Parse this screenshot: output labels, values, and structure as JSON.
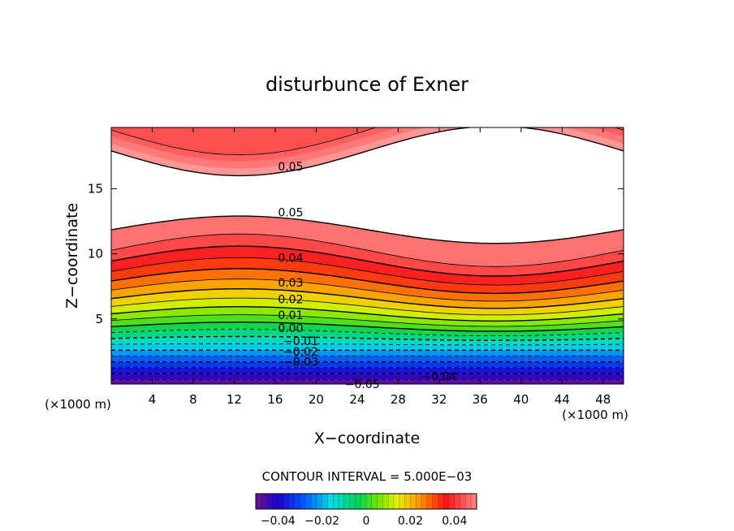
{
  "chart_data": {
    "type": "contour",
    "title": "disturbunce of Exner",
    "xlabel": "X−coordinate",
    "ylabel": "Z−coordinate",
    "x_unit": "(×1000 m)",
    "y_unit": "(×1000 m)",
    "xlim": [
      0,
      50
    ],
    "ylim": [
      0,
      19.7
    ],
    "x_ticks": [
      4,
      8,
      12,
      16,
      20,
      24,
      28,
      32,
      36,
      40,
      44,
      48
    ],
    "y_ticks": [
      5,
      10,
      15
    ],
    "contour_interval_text": "CONTOUR INTERVAL = 5.000E−03",
    "contour_interval": 0.005,
    "color_range": [
      -0.05,
      0.05
    ],
    "colorbar_ticks": [
      "−0.04",
      "−0.02",
      "0",
      "0.02",
      "0.04"
    ],
    "contour_labels": [
      {
        "text": "0.05",
        "x": 17.5,
        "z": 16.7
      },
      {
        "text": "0.05",
        "x": 17.5,
        "z": 13.2
      },
      {
        "text": "0.04",
        "x": 17.5,
        "z": 9.7
      },
      {
        "text": "0.03",
        "x": 17.5,
        "z": 7.8
      },
      {
        "text": "0.02",
        "x": 17.5,
        "z": 6.5
      },
      {
        "text": "0.01",
        "x": 17.5,
        "z": 5.3
      },
      {
        "text": "0.00",
        "x": 17.5,
        "z": 4.3
      },
      {
        "text": "−0.01",
        "x": 18.5,
        "z": 3.3
      },
      {
        "text": "−0.02",
        "x": 18.5,
        "z": 2.5
      },
      {
        "text": "−0.03",
        "x": 18.5,
        "z": 1.7
      },
      {
        "text": "−0.04",
        "x": 32.0,
        "z": 0.6
      },
      {
        "text": "−0.05",
        "x": 24.5,
        "z": 0.0
      }
    ]
  }
}
